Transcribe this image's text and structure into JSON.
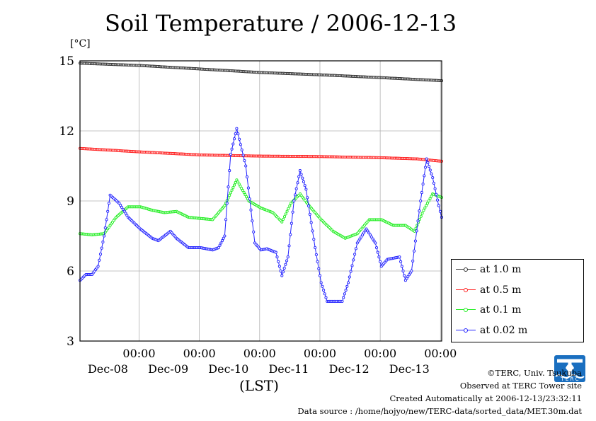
{
  "page": {
    "title": "Soil Temperature / 2006-12-13",
    "y_unit": "[°C]",
    "x_unit": "(LST)",
    "footer": [
      "©TERC, Univ. Tsukuba",
      "Observed at TERC Tower site",
      "Created Automatically at 2006-12-13/23:32:11",
      "Data source : /home/hojyo/new/TERC-data/sorted_data/MET.30m.dat"
    ]
  },
  "chart_data": {
    "type": "line",
    "title": "Soil Temperature / 2006-12-13",
    "ylabel": "[°C]",
    "xlabel": "(LST)",
    "ylim": [
      3,
      15
    ],
    "xlim": [
      0,
      6
    ],
    "x_unit_note": "days since Dec-07 00:00",
    "yticks": [
      3,
      6,
      9,
      12,
      15
    ],
    "xticks": [
      {
        "x": 1,
        "time": "00:00",
        "date": "Dec-08"
      },
      {
        "x": 2,
        "time": "00:00",
        "date": "Dec-09"
      },
      {
        "x": 3,
        "time": "00:00",
        "date": "Dec-10"
      },
      {
        "x": 4,
        "time": "00:00",
        "date": "Dec-11"
      },
      {
        "x": 5,
        "time": "00:00",
        "date": "Dec-12"
      },
      {
        "x": 6,
        "time": "00:00",
        "date": "Dec-13"
      }
    ],
    "grid": true,
    "legend_position": "right-bottom-outside",
    "series": [
      {
        "name": "at 1.0 m",
        "color": "#333333",
        "points": [
          [
            0,
            14.9
          ],
          [
            1,
            14.8
          ],
          [
            2,
            14.65
          ],
          [
            3,
            14.5
          ],
          [
            4,
            14.4
          ],
          [
            5,
            14.28
          ],
          [
            6,
            14.15
          ]
        ]
      },
      {
        "name": "at 0.5 m",
        "color": "#ff2020",
        "points": [
          [
            0,
            11.25
          ],
          [
            1,
            11.1
          ],
          [
            2,
            10.97
          ],
          [
            3,
            10.92
          ],
          [
            4,
            10.9
          ],
          [
            5,
            10.85
          ],
          [
            5.6,
            10.8
          ],
          [
            6,
            10.7
          ]
        ]
      },
      {
        "name": "at 0.1 m",
        "color": "#22ee22",
        "points": [
          [
            0,
            7.6
          ],
          [
            0.2,
            7.55
          ],
          [
            0.4,
            7.6
          ],
          [
            0.6,
            8.3
          ],
          [
            0.8,
            8.75
          ],
          [
            1.0,
            8.75
          ],
          [
            1.2,
            8.6
          ],
          [
            1.4,
            8.5
          ],
          [
            1.6,
            8.55
          ],
          [
            1.8,
            8.3
          ],
          [
            2.0,
            8.25
          ],
          [
            2.2,
            8.2
          ],
          [
            2.4,
            8.8
          ],
          [
            2.6,
            9.9
          ],
          [
            2.8,
            9.0
          ],
          [
            3.0,
            8.7
          ],
          [
            3.2,
            8.5
          ],
          [
            3.35,
            8.1
          ],
          [
            3.5,
            8.9
          ],
          [
            3.65,
            9.3
          ],
          [
            3.8,
            8.8
          ],
          [
            4.0,
            8.2
          ],
          [
            4.2,
            7.7
          ],
          [
            4.4,
            7.4
          ],
          [
            4.6,
            7.6
          ],
          [
            4.8,
            8.2
          ],
          [
            5.0,
            8.2
          ],
          [
            5.2,
            7.95
          ],
          [
            5.4,
            7.95
          ],
          [
            5.55,
            7.7
          ],
          [
            5.7,
            8.6
          ],
          [
            5.85,
            9.3
          ],
          [
            6.0,
            9.15
          ]
        ]
      },
      {
        "name": "at 0.02 m",
        "color": "#2222ff",
        "points": [
          [
            0,
            5.6
          ],
          [
            0.1,
            5.85
          ],
          [
            0.2,
            5.85
          ],
          [
            0.3,
            6.2
          ],
          [
            0.4,
            7.5
          ],
          [
            0.5,
            9.25
          ],
          [
            0.65,
            8.9
          ],
          [
            0.8,
            8.3
          ],
          [
            1.0,
            7.8
          ],
          [
            1.2,
            7.4
          ],
          [
            1.3,
            7.3
          ],
          [
            1.5,
            7.7
          ],
          [
            1.6,
            7.4
          ],
          [
            1.8,
            7.0
          ],
          [
            2.0,
            7.0
          ],
          [
            2.2,
            6.9
          ],
          [
            2.3,
            7.0
          ],
          [
            2.4,
            7.5
          ],
          [
            2.5,
            11.0
          ],
          [
            2.6,
            12.1
          ],
          [
            2.75,
            10.5
          ],
          [
            2.9,
            7.2
          ],
          [
            3.0,
            6.9
          ],
          [
            3.1,
            6.95
          ],
          [
            3.25,
            6.8
          ],
          [
            3.35,
            5.8
          ],
          [
            3.45,
            6.6
          ],
          [
            3.55,
            9.0
          ],
          [
            3.65,
            10.3
          ],
          [
            3.75,
            9.5
          ],
          [
            3.9,
            7.0
          ],
          [
            4.0,
            5.5
          ],
          [
            4.1,
            4.7
          ],
          [
            4.2,
            4.7
          ],
          [
            4.35,
            4.7
          ],
          [
            4.45,
            5.5
          ],
          [
            4.6,
            7.2
          ],
          [
            4.75,
            7.8
          ],
          [
            4.9,
            7.2
          ],
          [
            5.0,
            6.2
          ],
          [
            5.1,
            6.5
          ],
          [
            5.3,
            6.6
          ],
          [
            5.4,
            5.6
          ],
          [
            5.5,
            6.0
          ],
          [
            5.65,
            9.0
          ],
          [
            5.75,
            10.8
          ],
          [
            5.85,
            10.0
          ],
          [
            5.95,
            8.8
          ],
          [
            6.0,
            8.3
          ]
        ]
      }
    ]
  }
}
